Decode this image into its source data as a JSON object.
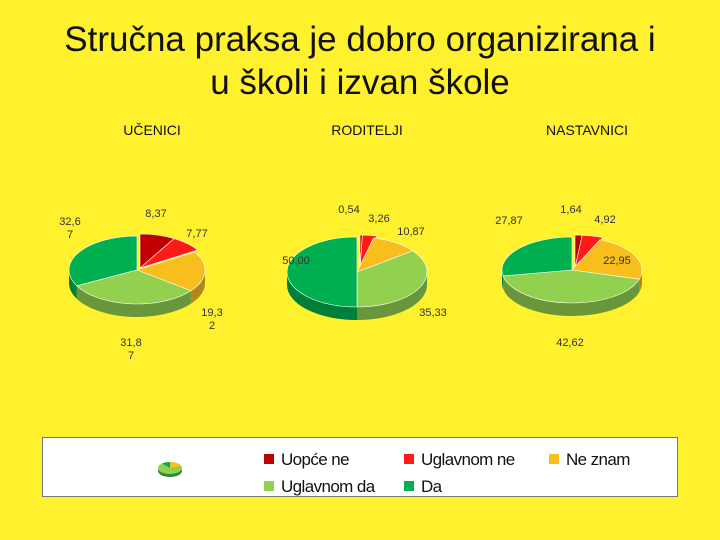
{
  "title": {
    "line1": "Stručna praksa je dobro organizirana i",
    "line2": "u školi i izvan škole"
  },
  "colors": {
    "uopce_ne": "#C00000",
    "uglavnom_ne": "#FF1A1A",
    "ne_znam": "#F7BE1E",
    "uglavnom_da": "#92D050",
    "da": "#00B050",
    "background": "#FFF12E"
  },
  "chart_data": [
    {
      "type": "pie",
      "title": "UČENICI",
      "labels": [
        "Uopće ne",
        "Uglavnom ne",
        "Ne znam",
        "Uglavnom da",
        "Da"
      ],
      "values": [
        8.37,
        7.77,
        19.32,
        31.87,
        32.67
      ],
      "data_labels": [
        "8,37",
        "7,77",
        "19,3\n2",
        "31,8\n7",
        "32,6\n7"
      ]
    },
    {
      "type": "pie",
      "title": "RODITELJI",
      "labels": [
        "Uopće ne",
        "Uglavnom ne",
        "Ne znam",
        "Uglavnom da",
        "Da"
      ],
      "values": [
        0.54,
        3.26,
        10.87,
        35.33,
        50.0
      ],
      "data_labels": [
        "0,54",
        "3,26",
        "10,87",
        "35,33",
        "50,00"
      ]
    },
    {
      "type": "pie",
      "title": "NASTAVNICI",
      "labels": [
        "Uopće ne",
        "Uglavnom ne",
        "Ne znam",
        "Uglavnom da",
        "Da"
      ],
      "values": [
        1.64,
        4.92,
        22.95,
        42.62,
        27.87
      ],
      "data_labels": [
        "1,64",
        "4,92",
        "22,95",
        "42,62",
        "27,87"
      ]
    }
  ],
  "legend": {
    "items": [
      {
        "label": "Uopće ne",
        "color": "#C00000"
      },
      {
        "label": "Uglavnom ne",
        "color": "#FF1A1A"
      },
      {
        "label": "Ne znam",
        "color": "#F7BE1E"
      },
      {
        "label": "Uglavnom da",
        "color": "#92D050"
      },
      {
        "label": "Da",
        "color": "#00B050"
      }
    ]
  }
}
